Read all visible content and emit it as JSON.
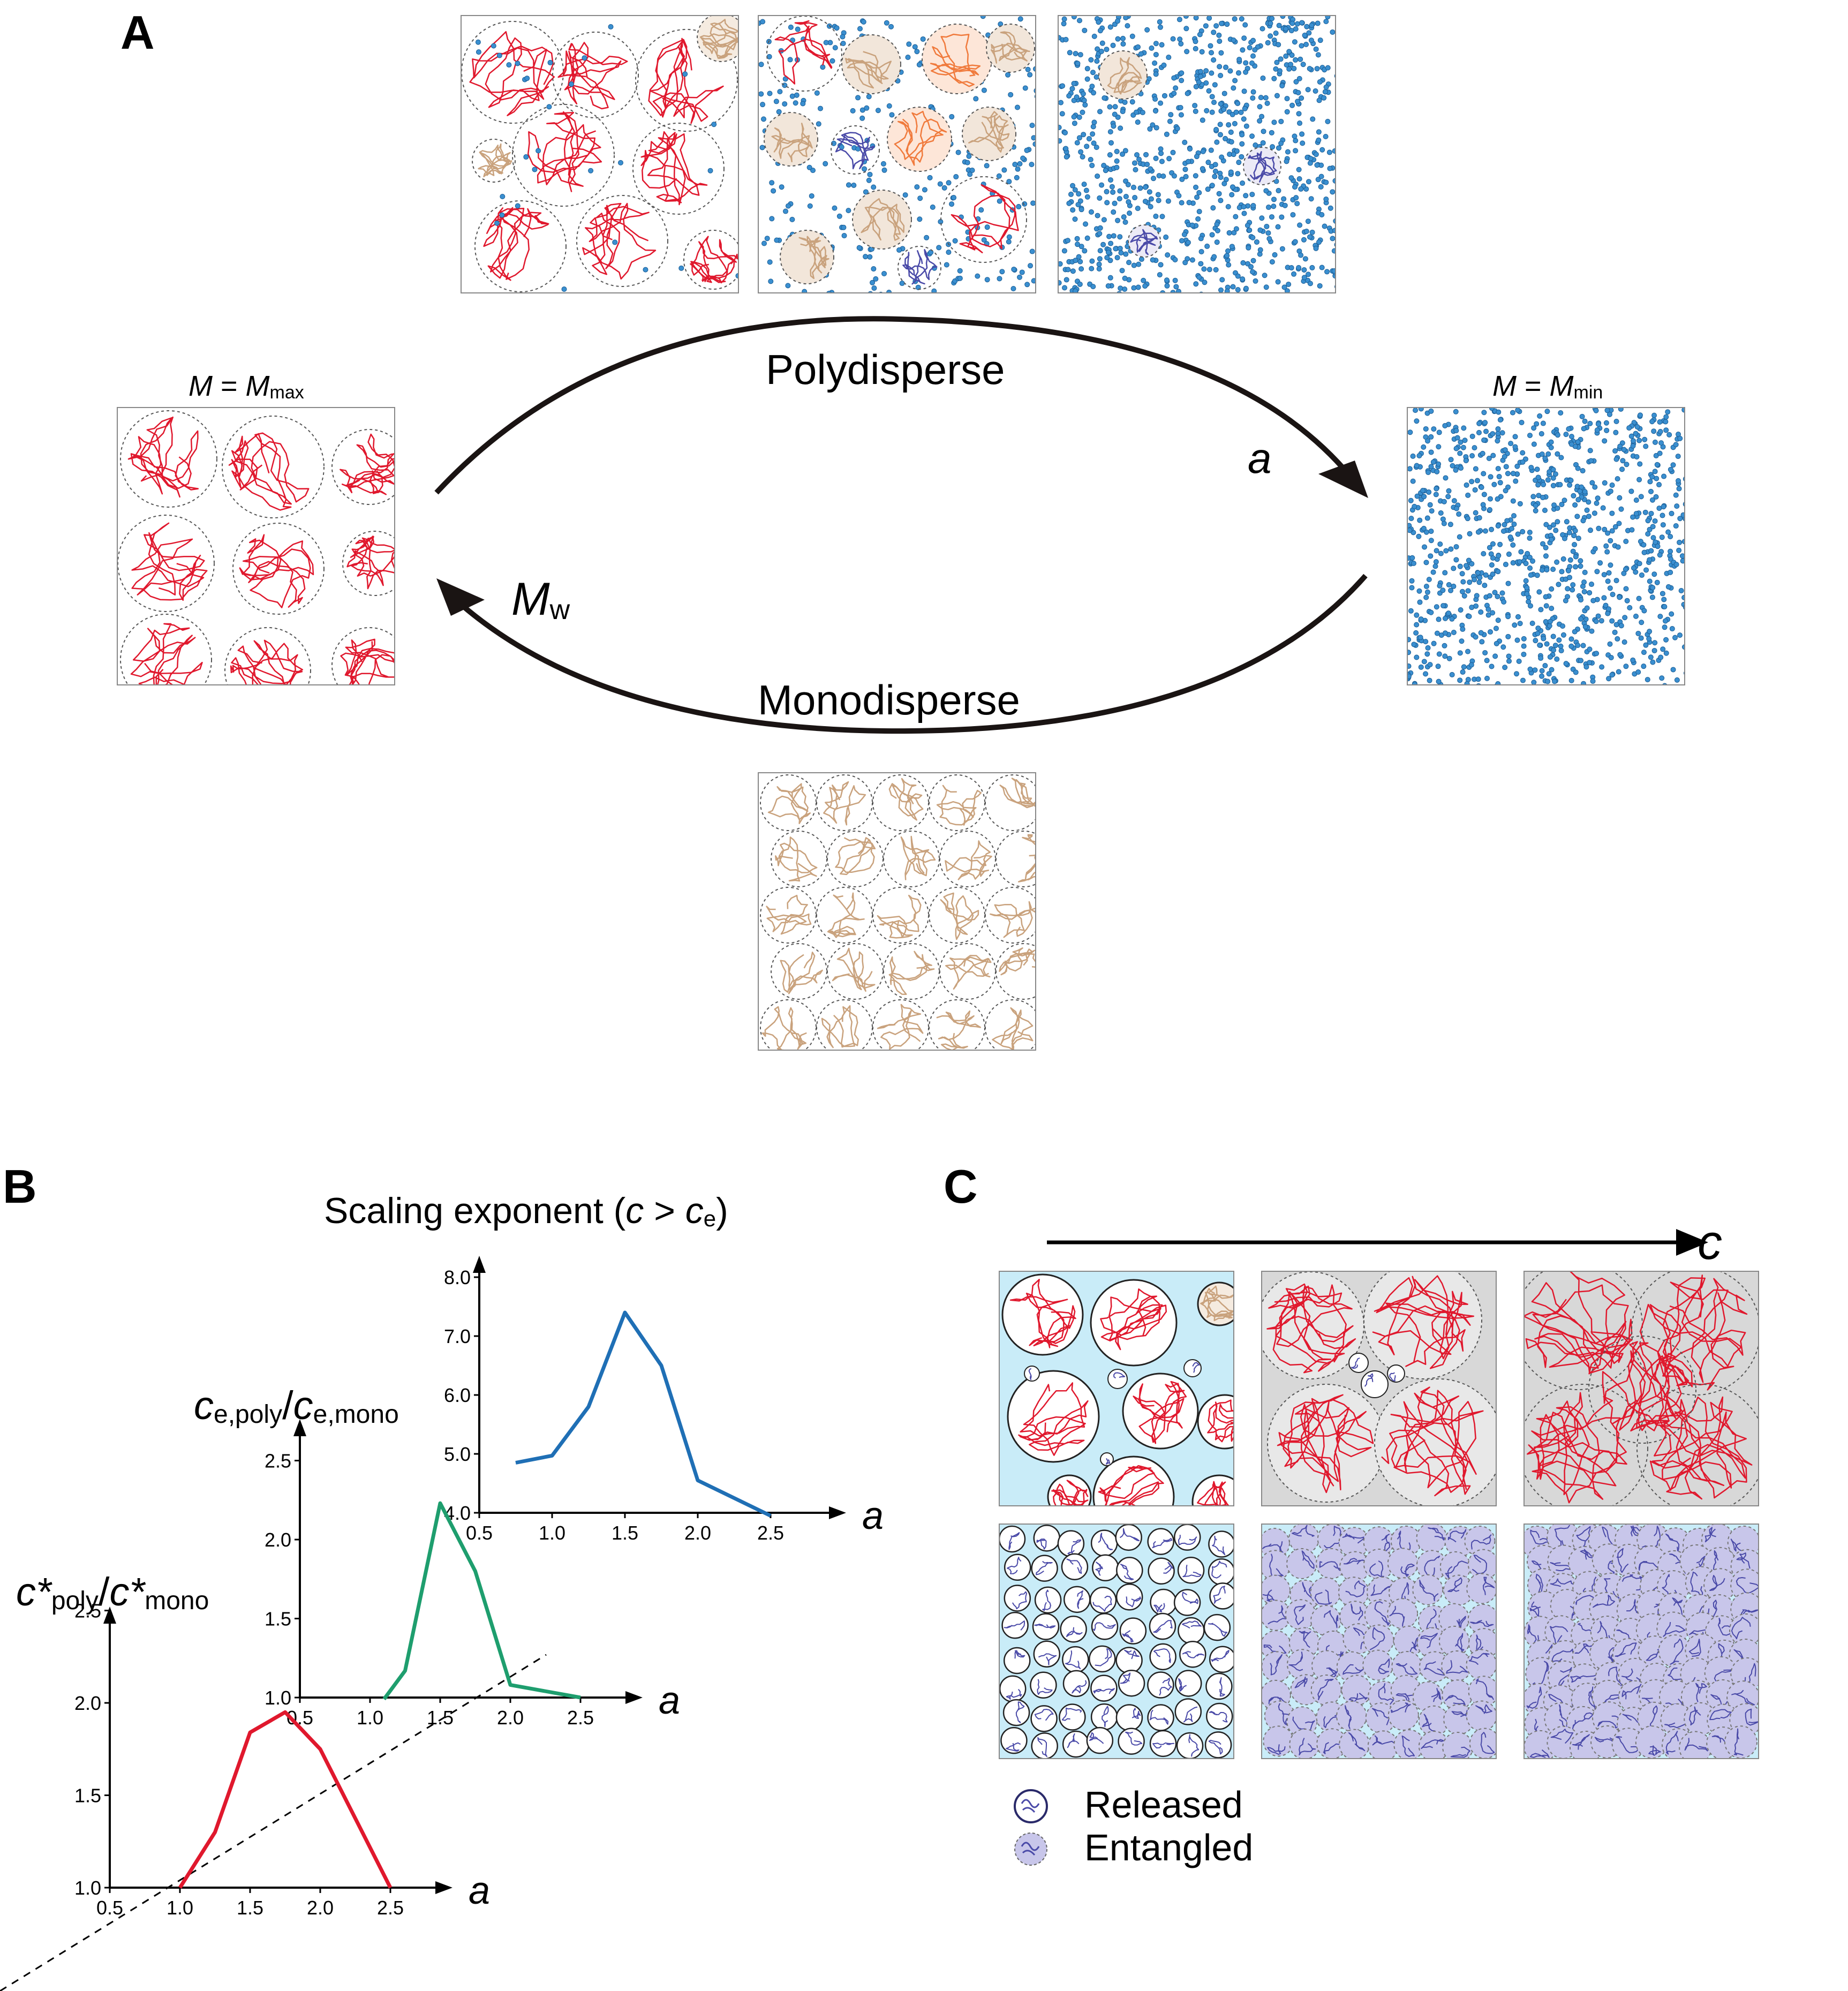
{
  "panel_labels": {
    "a": "A",
    "b": "B",
    "c": "C"
  },
  "panel_a": {
    "polydisperse_label": "Polydisperse",
    "monodisperse_label": "Monodisperse",
    "arrow_top_symbol": "a",
    "arrow_bottom_symbol": "M",
    "arrow_bottom_symbol_sub": "w",
    "left_caption": "M",
    "left_caption_eq": " = ",
    "left_caption_M": "M",
    "left_caption_sub": "max",
    "right_caption": "M",
    "right_caption_eq": " = ",
    "right_caption_M": "M",
    "right_caption_sub": "min"
  },
  "panel_b": {
    "chart_data": [
      {
        "type": "line",
        "title": "Scaling exponent",
        "title_paren_open": "(",
        "title_c": "c",
        "title_gt": " > ",
        "title_ce": "c",
        "title_ce_sub": "e",
        "title_paren_close": ")",
        "xlabel": "a",
        "x_ticks": [
          "0.5",
          "1.0",
          "1.5",
          "2.0",
          "2.5"
        ],
        "y_ticks": [
          "4.0",
          "5.0",
          "6.0",
          "7.0",
          "8.0"
        ],
        "xlim": [
          0.5,
          2.5
        ],
        "ylim": [
          4.0,
          8.0
        ],
        "color": "#1f6fb5",
        "x": [
          0.75,
          1.0,
          1.25,
          1.5,
          1.75,
          2.0,
          2.5
        ],
        "y": [
          4.85,
          4.97,
          5.8,
          7.4,
          6.5,
          4.55,
          3.95
        ]
      },
      {
        "type": "line",
        "ylabel_num": "c",
        "ylabel_num_sub": "e,poly",
        "ylabel_slash": "/",
        "ylabel_den": "c",
        "ylabel_den_sub": "e,mono",
        "xlabel": "a",
        "x_ticks": [
          "0.5",
          "1.0",
          "1.5",
          "2.0",
          "2.5"
        ],
        "y_ticks": [
          "1.0",
          "1.5",
          "2.0",
          "2.5"
        ],
        "xlim": [
          0.5,
          2.5
        ],
        "ylim": [
          1.0,
          2.5
        ],
        "color": "#1e9e6e",
        "x": [
          1.1,
          1.25,
          1.5,
          1.75,
          2.0,
          2.5
        ],
        "y": [
          0.99,
          1.17,
          2.23,
          1.8,
          1.08,
          1.0
        ]
      },
      {
        "type": "line",
        "ylabel_num": "c*",
        "ylabel_num_sub": "poly",
        "ylabel_slash": "/",
        "ylabel_den": "c*",
        "ylabel_den_sub": "mono",
        "xlabel": "a",
        "x_ticks": [
          "0.5",
          "1.0",
          "1.5",
          "2.0",
          "2.5"
        ],
        "y_ticks": [
          "1.0",
          "1.5",
          "2.0",
          "2.5"
        ],
        "xlim": [
          0.5,
          2.5
        ],
        "ylim": [
          1.0,
          2.5
        ],
        "color": "#e0182d",
        "x": [
          1.0,
          1.25,
          1.5,
          1.75,
          2.0,
          2.5
        ],
        "y": [
          1.0,
          1.3,
          1.84,
          1.95,
          1.75,
          1.0
        ]
      }
    ]
  },
  "panel_c": {
    "axis_label": "c",
    "legend": [
      {
        "label": "Released"
      },
      {
        "label": "Entangled"
      }
    ]
  },
  "colors": {
    "red_chain": "#e0182d",
    "tan_chain": "#c9a27d",
    "blue_chain": "#3a8fd0",
    "purple_chain": "#4a4aa8",
    "orange_chain": "#f07a3c",
    "light_blue_bg": "#c9ecf8",
    "grey_bg": "#d8d8d8"
  }
}
